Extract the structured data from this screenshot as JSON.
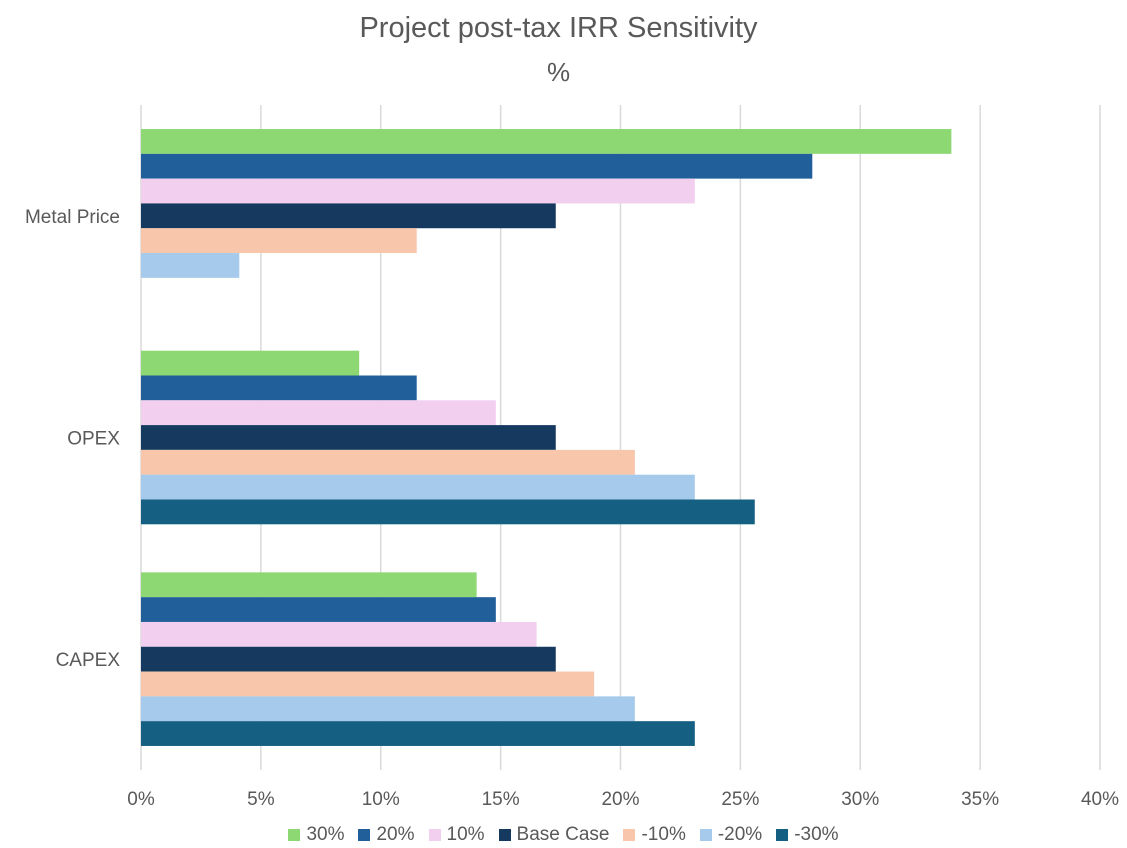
{
  "chart_data": {
    "type": "bar",
    "orientation": "horizontal",
    "title": "Project post-tax IRR Sensitivity",
    "subtitle": "%",
    "categories": [
      "Metal Price",
      "OPEX",
      "CAPEX"
    ],
    "series": [
      {
        "name": "30%",
        "color": "#8ed873",
        "values": [
          33.8,
          9.1,
          14.0
        ]
      },
      {
        "name": "20%",
        "color": "#215f9a",
        "values": [
          28.0,
          11.5,
          14.8
        ]
      },
      {
        "name": "10%",
        "color": "#f2ceef",
        "values": [
          23.1,
          14.8,
          16.5
        ]
      },
      {
        "name": "Base Case",
        "color": "#163a5f",
        "values": [
          17.3,
          17.3,
          17.3
        ]
      },
      {
        "name": "-10%",
        "color": "#f7c6ab",
        "values": [
          11.5,
          20.6,
          18.9
        ]
      },
      {
        "name": "-20%",
        "color": "#a6caec",
        "values": [
          4.1,
          23.1,
          20.6
        ]
      },
      {
        "name": "-30%",
        "color": "#156082",
        "values": [
          null,
          25.6,
          23.1
        ]
      }
    ],
    "x_ticks": [
      "0%",
      "5%",
      "10%",
      "15%",
      "20%",
      "25%",
      "30%",
      "35%",
      "40%"
    ],
    "xlim": [
      0,
      40
    ],
    "grid": true,
    "legend_position": "bottom"
  }
}
